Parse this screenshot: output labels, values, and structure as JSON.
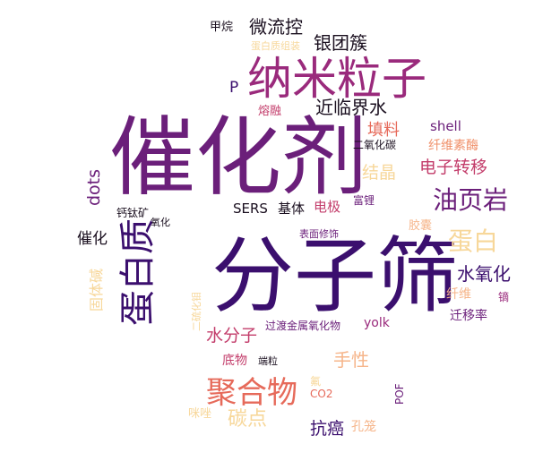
{
  "palette": {
    "black": "#1a0f1f",
    "deep_purple": "#3b0f6e",
    "purple": "#6b1f7a",
    "magenta": "#9a2a7c",
    "rose": "#c33d6b",
    "coral": "#e66a5a",
    "orange": "#f0906a",
    "peach": "#f6b58a",
    "light_peach": "#f7d79a"
  },
  "words": [
    {
      "text": "催化剂",
      "color": "purple"
    },
    {
      "text": "分子筛",
      "color": "deep_purple"
    },
    {
      "text": "纳米粒子",
      "color": "magenta"
    },
    {
      "text": "蛋白质",
      "color": "deep_purple"
    },
    {
      "text": "聚合物",
      "color": "coral"
    },
    {
      "text": "油页岩",
      "color": "purple"
    },
    {
      "text": "蛋白",
      "color": "light_peach"
    },
    {
      "text": "电子转移",
      "color": "rose"
    },
    {
      "text": "水氧化",
      "color": "deep_purple"
    },
    {
      "text": "近临界水",
      "color": "black"
    },
    {
      "text": "银团簇",
      "color": "black"
    },
    {
      "text": "微流控",
      "color": "black"
    },
    {
      "text": "手性",
      "color": "peach"
    },
    {
      "text": "碳点",
      "color": "light_peach"
    },
    {
      "text": "水分子",
      "color": "rose"
    },
    {
      "text": "抗癌",
      "color": "deep_purple"
    },
    {
      "text": "结晶",
      "color": "light_peach"
    },
    {
      "text": "填料",
      "color": "coral"
    },
    {
      "text": "dots",
      "color": "purple"
    },
    {
      "text": "催化",
      "color": "black"
    },
    {
      "text": "固体碱",
      "color": "light_peach"
    },
    {
      "text": "P",
      "color": "deep_purple"
    },
    {
      "text": "shell",
      "color": "purple"
    },
    {
      "text": "纤维素酶",
      "color": "orange"
    },
    {
      "text": "二氧化碳",
      "color": "black"
    },
    {
      "text": "熔融",
      "color": "rose"
    },
    {
      "text": "甲烷",
      "color": "black"
    },
    {
      "text": "蛋白质组装",
      "color": "light_peach"
    },
    {
      "text": "SERS",
      "color": "black"
    },
    {
      "text": "基体",
      "color": "black"
    },
    {
      "text": "电极",
      "color": "rose"
    },
    {
      "text": "富锂",
      "color": "purple"
    },
    {
      "text": "钙钛矿",
      "color": "black"
    },
    {
      "text": "氧化",
      "color": "black"
    },
    {
      "text": "胶囊",
      "color": "peach"
    },
    {
      "text": "表面修饰",
      "color": "purple"
    },
    {
      "text": "二硫化钼",
      "color": "light_peach"
    },
    {
      "text": "纤维",
      "color": "peach"
    },
    {
      "text": "镝",
      "color": "magenta"
    },
    {
      "text": "迁移率",
      "color": "purple"
    },
    {
      "text": "过渡金属氧化物",
      "color": "purple"
    },
    {
      "text": "yolk",
      "color": "magenta"
    },
    {
      "text": "底物",
      "color": "rose"
    },
    {
      "text": "端粒",
      "color": "black"
    },
    {
      "text": "氟",
      "color": "light_peach"
    },
    {
      "text": "CO2",
      "color": "coral"
    },
    {
      "text": "POF",
      "color": "purple"
    },
    {
      "text": "咪唑",
      "color": "light_peach"
    },
    {
      "text": "孔笼",
      "color": "peach"
    }
  ]
}
